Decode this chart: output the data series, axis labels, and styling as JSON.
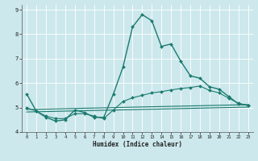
{
  "xlabel": "Humidex (Indice chaleur)",
  "xlim": [
    -0.5,
    23.5
  ],
  "ylim": [
    4,
    9.2
  ],
  "yticks": [
    4,
    5,
    6,
    7,
    8,
    9
  ],
  "xticks": [
    0,
    1,
    2,
    3,
    4,
    5,
    6,
    7,
    8,
    9,
    10,
    11,
    12,
    13,
    14,
    15,
    16,
    17,
    18,
    19,
    20,
    21,
    22,
    23
  ],
  "background_color": "#cce8ec",
  "grid_color": "#b0d8dc",
  "line_color": "#1a7a6e",
  "lines": [
    {
      "x": [
        0,
        1,
        2,
        3,
        4,
        5,
        6,
        7,
        8,
        9,
        10,
        11,
        12,
        13,
        14,
        15,
        16,
        17,
        18,
        19,
        20,
        21,
        22,
        23
      ],
      "y": [
        5.55,
        4.85,
        4.6,
        4.45,
        4.5,
        4.9,
        4.8,
        4.6,
        4.6,
        5.55,
        6.65,
        8.3,
        8.8,
        8.55,
        7.5,
        7.6,
        6.9,
        6.3,
        6.2,
        5.85,
        5.75,
        5.45,
        5.15,
        5.1
      ],
      "marker": "D",
      "marker_size": 2.0,
      "linewidth": 1.0,
      "with_marker": true
    },
    {
      "x": [
        0,
        1,
        2,
        3,
        4,
        5,
        6,
        7,
        8,
        9,
        10,
        11,
        12,
        13,
        14,
        15,
        16,
        17,
        18,
        19,
        20,
        21,
        22,
        23
      ],
      "y": [
        5.0,
        4.85,
        4.65,
        4.55,
        4.55,
        4.75,
        4.75,
        4.65,
        4.55,
        4.9,
        5.25,
        5.4,
        5.5,
        5.6,
        5.65,
        5.72,
        5.78,
        5.82,
        5.88,
        5.7,
        5.6,
        5.38,
        5.18,
        5.08
      ],
      "marker": "D",
      "marker_size": 2.0,
      "linewidth": 0.8,
      "with_marker": true
    },
    {
      "x": [
        0,
        23
      ],
      "y": [
        4.92,
        5.12
      ],
      "marker": null,
      "marker_size": 0,
      "linewidth": 0.8,
      "with_marker": false
    },
    {
      "x": [
        0,
        23
      ],
      "y": [
        4.82,
        5.02
      ],
      "marker": null,
      "marker_size": 0,
      "linewidth": 0.8,
      "with_marker": false
    }
  ]
}
